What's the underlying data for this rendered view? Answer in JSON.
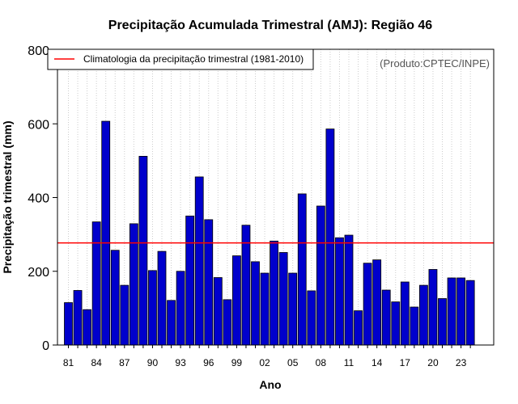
{
  "chart_data": {
    "type": "bar",
    "title": "Precipitação Acumulada Trimestral (AMJ): Região 46",
    "xlabel": "Ano",
    "ylabel": "Precipitação trimestral (mm)",
    "source": "(Produto:CPTEC/INPE)",
    "ylim": [
      0,
      800
    ],
    "yticks": [
      0,
      200,
      400,
      600,
      800
    ],
    "grid": "vertical dotted",
    "legend_position": "top-left",
    "legend": "Climatologia da precipitação trimestral (1981-2010)",
    "climatology": 277,
    "categories": [
      "81",
      "82",
      "83",
      "84",
      "85",
      "86",
      "87",
      "88",
      "89",
      "90",
      "91",
      "92",
      "93",
      "94",
      "95",
      "96",
      "97",
      "98",
      "99",
      "00",
      "01",
      "02",
      "03",
      "04",
      "05",
      "06",
      "07",
      "08",
      "09",
      "10",
      "11",
      "12",
      "13",
      "14",
      "15",
      "16",
      "17",
      "18",
      "19",
      "20",
      "21",
      "22",
      "23",
      "24"
    ],
    "xtick_labels": [
      "81",
      "84",
      "87",
      "90",
      "93",
      "96",
      "99",
      "02",
      "05",
      "08",
      "11",
      "14",
      "17",
      "20",
      "23"
    ],
    "values": [
      115,
      148,
      96,
      334,
      607,
      257,
      162,
      329,
      512,
      202,
      254,
      121,
      200,
      350,
      456,
      340,
      183,
      123,
      242,
      325,
      226,
      195,
      282,
      251,
      195,
      410,
      147,
      377,
      586,
      291,
      298,
      93,
      222,
      231,
      149,
      117,
      171,
      103,
      162,
      205,
      126,
      182,
      182,
      175
    ],
    "colors": {
      "bar": "#0000cc",
      "line": "#ff0000",
      "grid": "#cccccc"
    }
  }
}
